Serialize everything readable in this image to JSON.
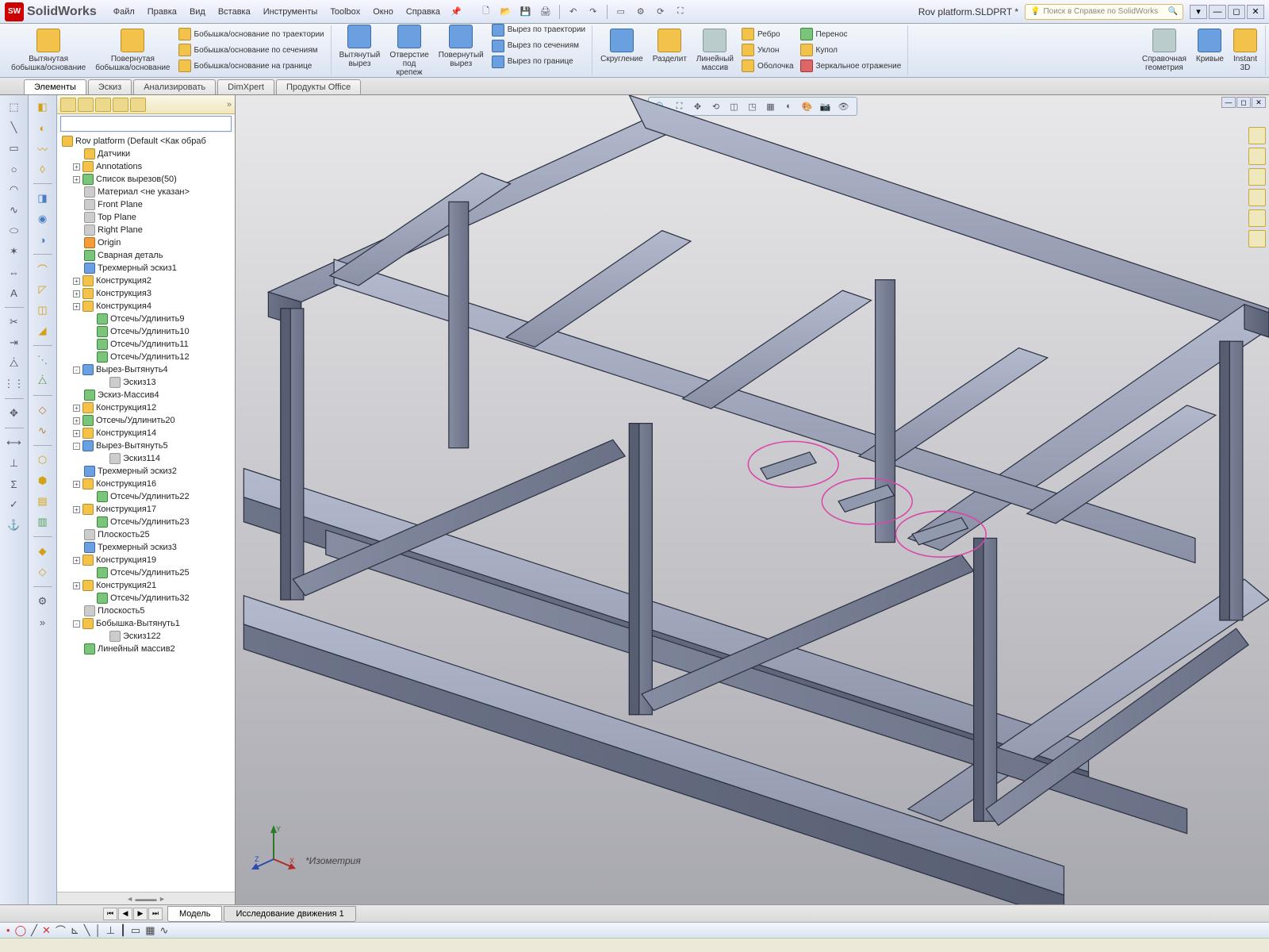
{
  "app": {
    "logo": "SW",
    "name": "SolidWorks"
  },
  "menu": [
    "Файл",
    "Правка",
    "Вид",
    "Вставка",
    "Инструменты",
    "Toolbox",
    "Окно",
    "Справка"
  ],
  "document_title": "Rov platform.SLDPRT *",
  "search_placeholder": "Поиск в Справке по SolidWorks",
  "ribbon": {
    "g1a": "Вытянутая\nбобышка/основание",
    "g1b": "Повернутая\nбобышка/основание",
    "g1_sm1": "Бобышка/основание по траектории",
    "g1_sm2": "Бобышка/основание по сечениям",
    "g1_sm3": "Бобышка/основание на границе",
    "g2a": "Вытянутый\nвырез",
    "g2b": "Отверстие\nпод\nкрепеж",
    "g2c": "Повернутый\nвырез",
    "g2_sm1": "Вырез по траектории",
    "g2_sm2": "Вырез по сечениям",
    "g2_sm3": "Вырез по границе",
    "g3a": "Скругление",
    "g3b": "Разделит",
    "g3c": "Линейный\nмассив",
    "g4_sm1": "Ребро",
    "g4_sm2": "Уклон",
    "g4_sm3": "Оболочка",
    "g5_sm1": "Перенос",
    "g5_sm2": "Купол",
    "g5_sm3": "Зеркальное отражение",
    "g6a": "Справочная\nгеометрия",
    "g6b": "Кривые",
    "g6c": "Instant\n3D"
  },
  "tabs": [
    "Элементы",
    "Эскиз",
    "Анализировать",
    "DimXpert",
    "Продукты Office"
  ],
  "active_tab": 0,
  "tree": {
    "root": "Rov platform  (Default <Как обраб",
    "items": [
      {
        "lvl": 1,
        "exp": "",
        "ico": "ylw",
        "txt": "Датчики"
      },
      {
        "lvl": 1,
        "exp": "+",
        "ico": "ylw",
        "txt": "Annotations"
      },
      {
        "lvl": 1,
        "exp": "+",
        "ico": "grn",
        "txt": "Список вырезов(50)"
      },
      {
        "lvl": 1,
        "exp": "",
        "ico": "gry",
        "txt": "Материал <не указан>"
      },
      {
        "lvl": 1,
        "exp": "",
        "ico": "gry",
        "txt": "Front Plane"
      },
      {
        "lvl": 1,
        "exp": "",
        "ico": "gry",
        "txt": "Top Plane"
      },
      {
        "lvl": 1,
        "exp": "",
        "ico": "gry",
        "txt": "Right Plane"
      },
      {
        "lvl": 1,
        "exp": "",
        "ico": "org",
        "txt": "Origin"
      },
      {
        "lvl": 1,
        "exp": "",
        "ico": "grn",
        "txt": "Сварная деталь"
      },
      {
        "lvl": 1,
        "exp": "",
        "ico": "blu",
        "txt": "Трехмерный эскиз1"
      },
      {
        "lvl": 1,
        "exp": "+",
        "ico": "ylw",
        "txt": "Конструкция2"
      },
      {
        "lvl": 1,
        "exp": "+",
        "ico": "ylw",
        "txt": "Конструкция3"
      },
      {
        "lvl": 1,
        "exp": "+",
        "ico": "ylw",
        "txt": "Конструкция4"
      },
      {
        "lvl": 2,
        "exp": "",
        "ico": "grn",
        "txt": "Отсечь/Удлинить9"
      },
      {
        "lvl": 2,
        "exp": "",
        "ico": "grn",
        "txt": "Отсечь/Удлинить10"
      },
      {
        "lvl": 2,
        "exp": "",
        "ico": "grn",
        "txt": "Отсечь/Удлинить11"
      },
      {
        "lvl": 2,
        "exp": "",
        "ico": "grn",
        "txt": "Отсечь/Удлинить12"
      },
      {
        "lvl": 1,
        "exp": "-",
        "ico": "blu",
        "txt": "Вырез-Вытянуть4"
      },
      {
        "lvl": 3,
        "exp": "",
        "ico": "gry",
        "txt": "Эскиз13"
      },
      {
        "lvl": 1,
        "exp": "",
        "ico": "grn",
        "txt": "Эскиз-Массив4"
      },
      {
        "lvl": 1,
        "exp": "+",
        "ico": "ylw",
        "txt": "Конструкция12"
      },
      {
        "lvl": 1,
        "exp": "+",
        "ico": "grn",
        "txt": "Отсечь/Удлинить20"
      },
      {
        "lvl": 1,
        "exp": "+",
        "ico": "ylw",
        "txt": "Конструкция14"
      },
      {
        "lvl": 1,
        "exp": "-",
        "ico": "blu",
        "txt": "Вырез-Вытянуть5"
      },
      {
        "lvl": 3,
        "exp": "",
        "ico": "gry",
        "txt": "Эскиз114"
      },
      {
        "lvl": 1,
        "exp": "",
        "ico": "blu",
        "txt": "Трехмерный эскиз2"
      },
      {
        "lvl": 1,
        "exp": "+",
        "ico": "ylw",
        "txt": "Конструкция16"
      },
      {
        "lvl": 2,
        "exp": "",
        "ico": "grn",
        "txt": "Отсечь/Удлинить22"
      },
      {
        "lvl": 1,
        "exp": "+",
        "ico": "ylw",
        "txt": "Конструкция17"
      },
      {
        "lvl": 2,
        "exp": "",
        "ico": "grn",
        "txt": "Отсечь/Удлинить23"
      },
      {
        "lvl": 1,
        "exp": "",
        "ico": "gry",
        "txt": "Плоскость25"
      },
      {
        "lvl": 1,
        "exp": "",
        "ico": "blu",
        "txt": "Трехмерный эскиз3"
      },
      {
        "lvl": 1,
        "exp": "+",
        "ico": "ylw",
        "txt": "Конструкция19"
      },
      {
        "lvl": 2,
        "exp": "",
        "ico": "grn",
        "txt": "Отсечь/Удлинить25"
      },
      {
        "lvl": 1,
        "exp": "+",
        "ico": "ylw",
        "txt": "Конструкция21"
      },
      {
        "lvl": 2,
        "exp": "",
        "ico": "grn",
        "txt": "Отсечь/Удлинить32"
      },
      {
        "lvl": 1,
        "exp": "",
        "ico": "gry",
        "txt": "Плоскость5"
      },
      {
        "lvl": 1,
        "exp": "-",
        "ico": "ylw",
        "txt": "Бобышка-Вытянуть1"
      },
      {
        "lvl": 3,
        "exp": "",
        "ico": "gry",
        "txt": "Эскиз122"
      },
      {
        "lvl": 1,
        "exp": "",
        "ico": "grn",
        "txt": "Линейный массив2"
      }
    ]
  },
  "view_label": "*Изометрия",
  "triad": {
    "x": "X",
    "y": "Y",
    "z": "Z"
  },
  "bottom_tabs": [
    "Модель",
    "Исследование движения 1"
  ],
  "colors": {
    "beam_light": "#9ca3b5",
    "beam_mid": "#7f879d",
    "beam_dark": "#5a6178",
    "edge": "#2d3242",
    "highlight": "#d946a8"
  }
}
